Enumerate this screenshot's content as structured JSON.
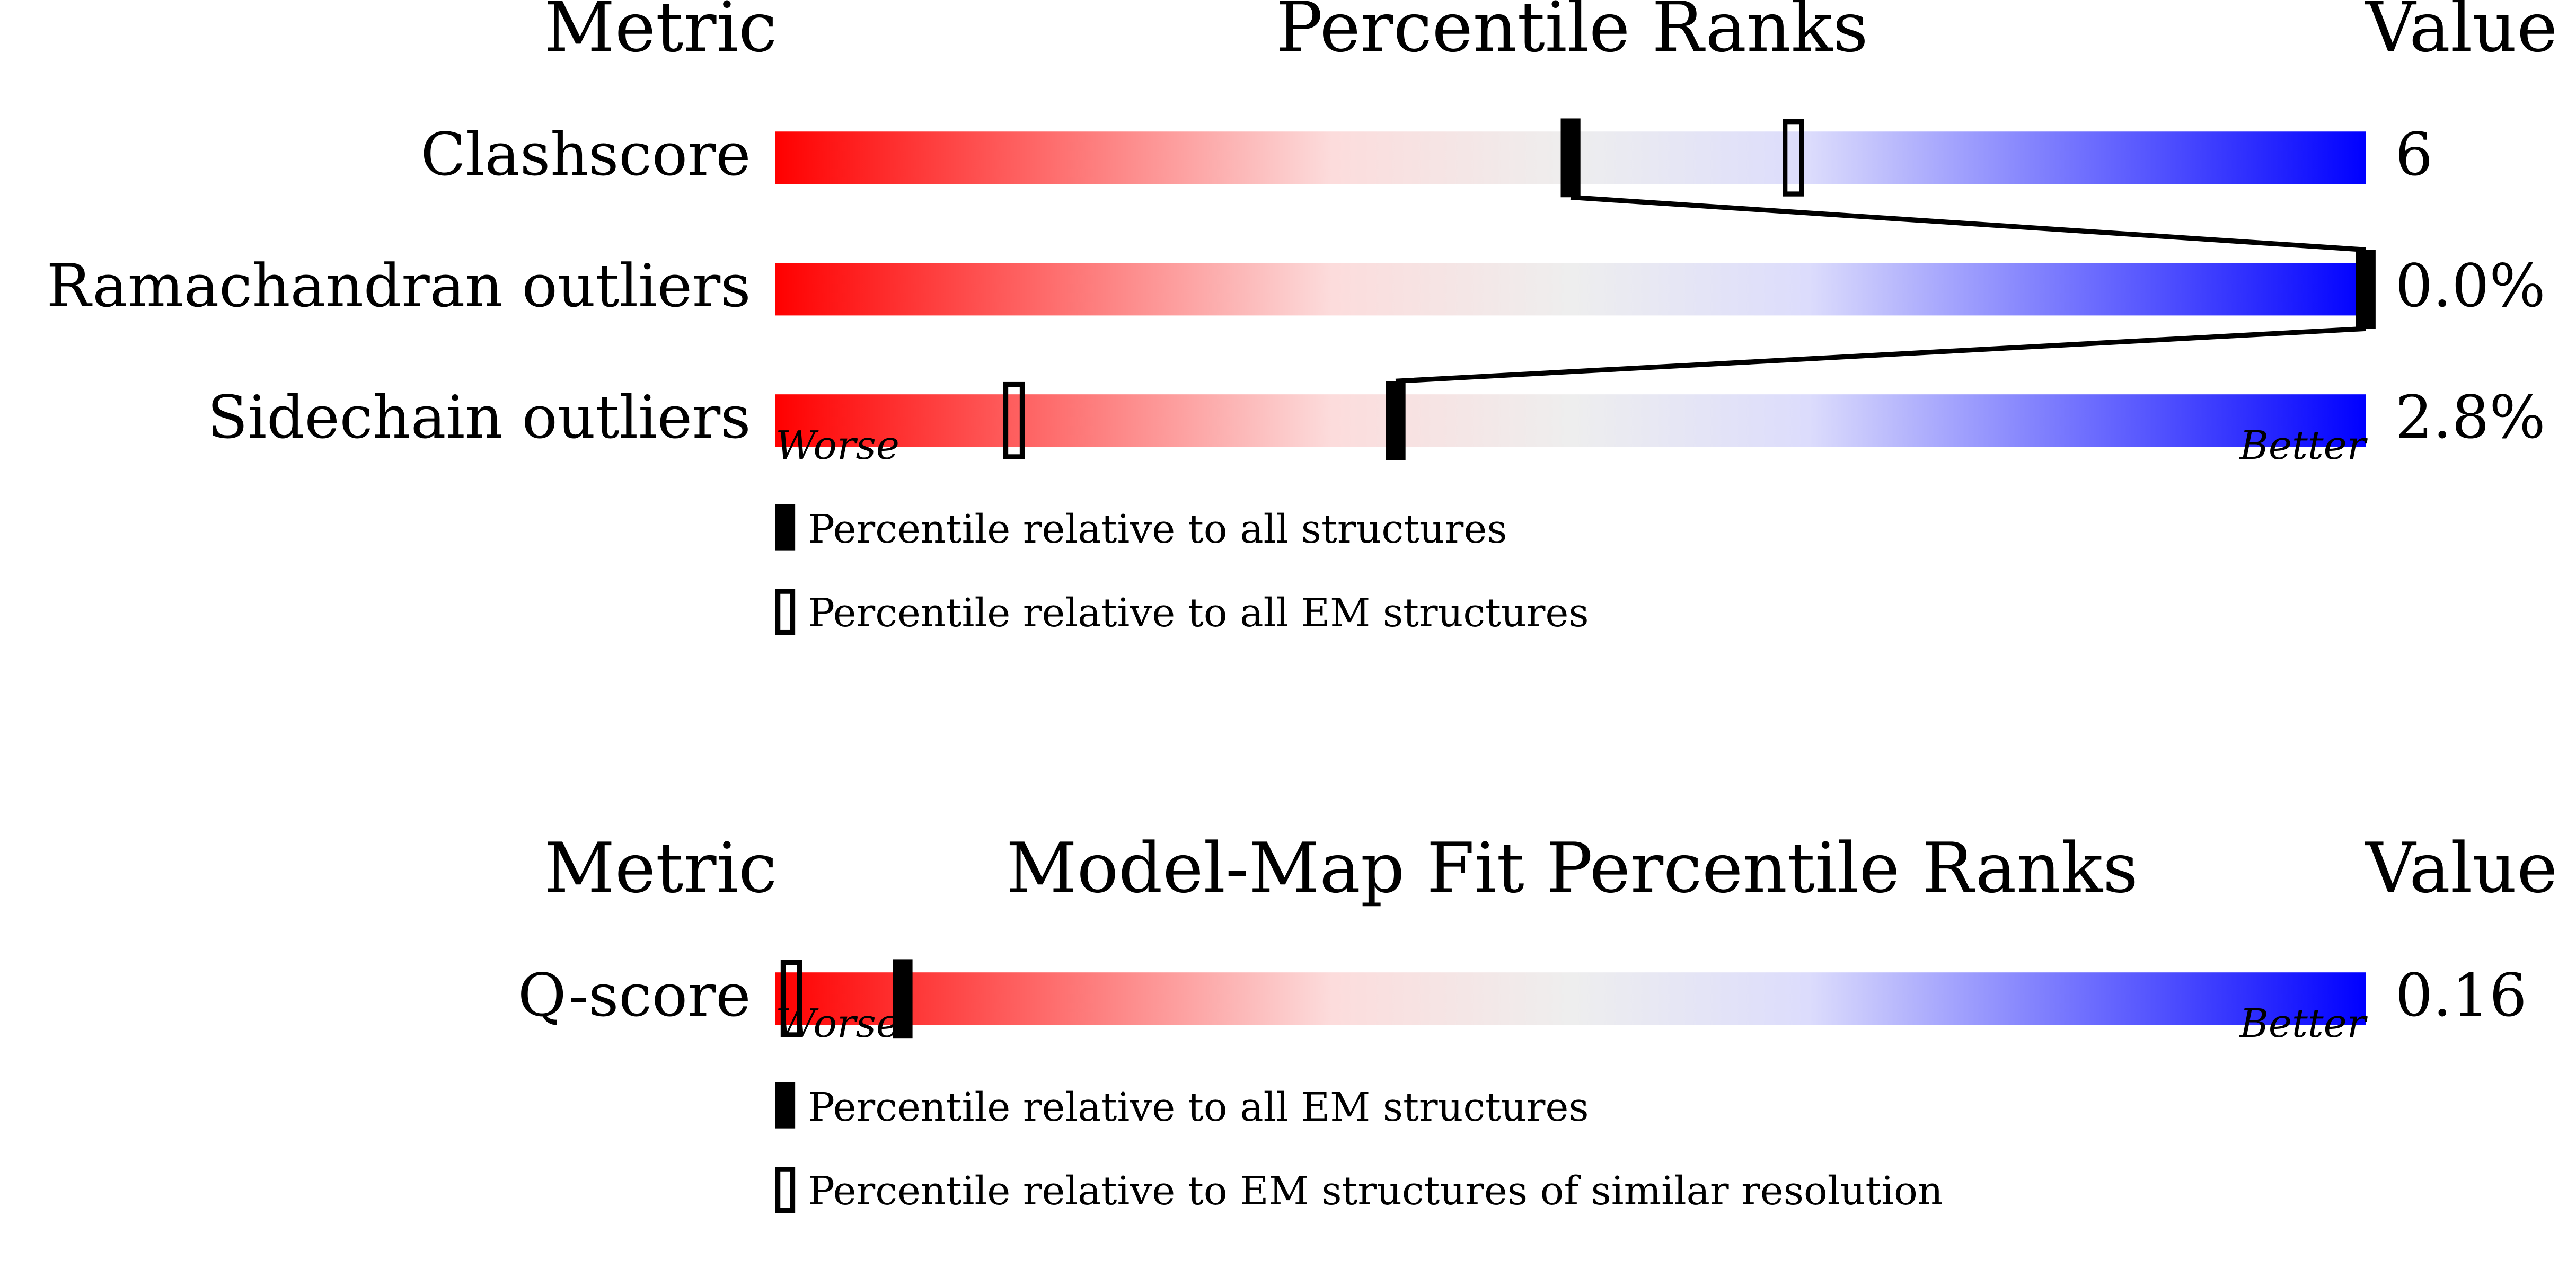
{
  "chart_data": [
    {
      "type": "percentile-slider",
      "headers": {
        "metric": "Metric",
        "title": "Percentile Ranks",
        "value": "Value"
      },
      "xlim": [
        0,
        100
      ],
      "rows": [
        {
          "metric": "Clashscore",
          "value": "6",
          "filled": 50,
          "open": 64
        },
        {
          "metric": "Ramachandran outliers",
          "value": "0.0%",
          "filled": 100,
          "open": null
        },
        {
          "metric": "Sidechain outliers",
          "value": "2.8%",
          "filled": 39,
          "open": 15
        }
      ],
      "worse": "Worse",
      "better": "Better",
      "legend": {
        "filled": "Percentile relative to all structures",
        "open": "Percentile relative to all EM structures"
      }
    },
    {
      "type": "percentile-slider",
      "headers": {
        "metric": "Metric",
        "title": "Model-Map Fit Percentile Ranks",
        "value": "Value"
      },
      "xlim": [
        0,
        100
      ],
      "rows": [
        {
          "metric": "Q-score",
          "value": "0.16",
          "filled": 8,
          "open": 1
        }
      ],
      "worse": "Worse",
      "better": "Better",
      "legend": {
        "filled": "Percentile relative to all EM structures",
        "open": "Percentile relative to EM structures of similar resolution"
      }
    }
  ]
}
